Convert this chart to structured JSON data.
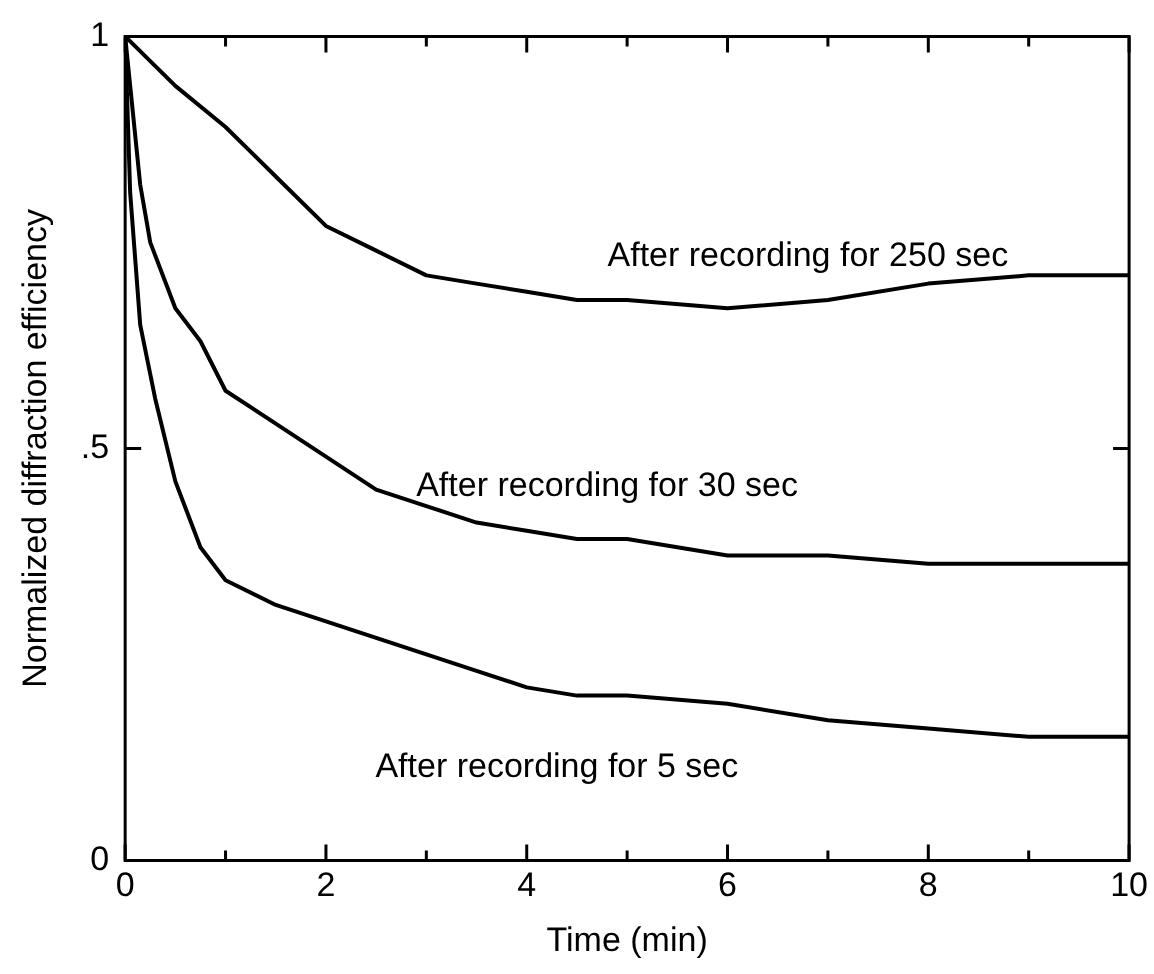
{
  "chart_data": {
    "type": "line",
    "xlabel": "Time (min)",
    "ylabel": "Normalized diffraction efficiency",
    "xlim": [
      0,
      10
    ],
    "ylim": [
      0,
      1
    ],
    "xticks": [
      0,
      {
        "value": 1,
        "label": null
      },
      2,
      {
        "value": 3,
        "label": null
      },
      4,
      {
        "value": 5,
        "label": null
      },
      6,
      {
        "value": 7,
        "label": null
      },
      8,
      {
        "value": 9,
        "label": null
      },
      10
    ],
    "yticks": [
      0,
      {
        "value": 0.5,
        "label": ".5"
      },
      1
    ],
    "grid": false,
    "legend": false,
    "marker": "none",
    "line_style": "solid",
    "series": [
      {
        "name": "After recording for 250 sec",
        "color": "#000000",
        "x": [
          0,
          0.5,
          1,
          1.5,
          2,
          2.5,
          3,
          3.5,
          4,
          4.5,
          5,
          6,
          7,
          8,
          9,
          10
        ],
        "values": [
          1,
          0.94,
          0.89,
          0.83,
          0.77,
          0.74,
          0.71,
          0.7,
          0.69,
          0.68,
          0.68,
          0.67,
          0.68,
          0.7,
          0.71,
          0.71
        ]
      },
      {
        "name": "After recording for 30 sec",
        "color": "#000000",
        "x": [
          0,
          0.15,
          0.25,
          0.5,
          0.75,
          1,
          1.5,
          2,
          2.5,
          3,
          3.5,
          4,
          4.5,
          5,
          6,
          7,
          8,
          9,
          10
        ],
        "values": [
          1,
          0.82,
          0.75,
          0.67,
          0.63,
          0.57,
          0.53,
          0.49,
          0.45,
          0.43,
          0.41,
          0.4,
          0.39,
          0.39,
          0.37,
          0.37,
          0.36,
          0.36,
          0.36
        ]
      },
      {
        "name": "After recording for 5 sec",
        "color": "#000000",
        "x": [
          0,
          0.05,
          0.15,
          0.3,
          0.5,
          0.75,
          1,
          1.5,
          2,
          2.5,
          3,
          3.5,
          4,
          4.5,
          5,
          6,
          7,
          8,
          9,
          10
        ],
        "values": [
          1,
          0.81,
          0.65,
          0.56,
          0.46,
          0.38,
          0.34,
          0.31,
          0.29,
          0.27,
          0.25,
          0.23,
          0.21,
          0.2,
          0.2,
          0.19,
          0.17,
          0.16,
          0.15,
          0.15
        ]
      }
    ]
  }
}
